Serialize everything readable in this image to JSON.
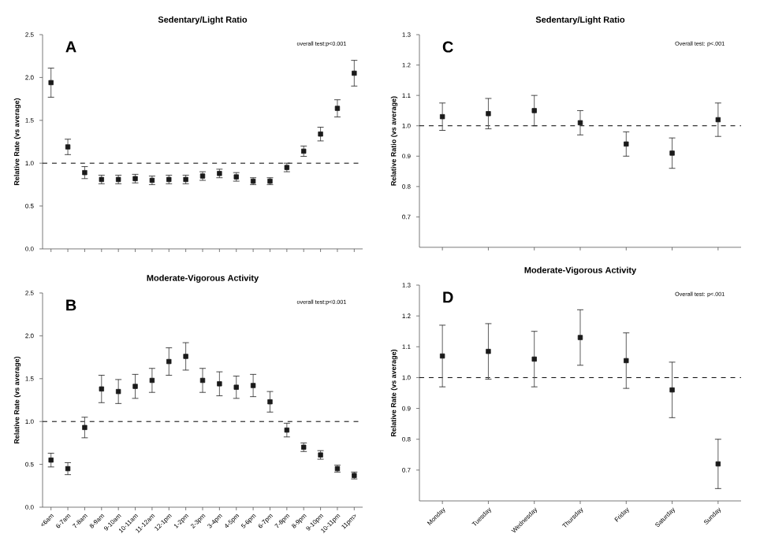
{
  "chart_data": [
    {
      "type": "scatter",
      "title": "Sedentary/Light Ratio",
      "ylabel": "Relative Rate (vs average)",
      "annotations": [
        "A",
        "overall test:p<0.001"
      ],
      "categories": [
        null,
        null,
        null,
        null,
        null,
        null,
        null,
        null,
        null,
        null,
        null,
        null,
        null,
        null,
        null,
        null,
        null,
        null,
        null
      ],
      "values": [
        1.94,
        1.19,
        0.89,
        0.81,
        0.81,
        0.82,
        0.8,
        0.81,
        0.81,
        0.85,
        0.88,
        0.84,
        0.79,
        0.79,
        0.95,
        1.14,
        1.34,
        1.64,
        2.05
      ],
      "errors": [
        0.17,
        0.09,
        0.07,
        0.05,
        0.05,
        0.05,
        0.05,
        0.05,
        0.05,
        0.05,
        0.05,
        0.05,
        0.04,
        0.04,
        0.05,
        0.06,
        0.08,
        0.1,
        0.15
      ],
      "color": "#1a1a1a",
      "marker": "square",
      "ylim": [
        0,
        2.5
      ],
      "yticks": [
        {
          "value": 0,
          "label": "0.0"
        },
        {
          "value": 0.5,
          "label": "0.5"
        },
        {
          "value": 1,
          "label": "1.0"
        },
        {
          "value": 1.5,
          "label": "1.5"
        },
        {
          "value": 2,
          "label": "2.0"
        },
        {
          "value": 2.5,
          "label": "2.5"
        }
      ],
      "ref_lines": [
        {
          "axis": "y",
          "value": 1,
          "line_style": "dashed"
        }
      ],
      "tick_labels": "y"
    },
    {
      "type": "scatter",
      "title": "Moderate-Vigorous Activity",
      "ylabel": "Relative Rate (vs average)",
      "annotations": [
        "B",
        "overall test:p<0.001"
      ],
      "categories": [
        "<6am",
        "6-7am",
        "7-8am",
        "8-9am",
        "9-10am",
        "10-11am",
        "11-12am",
        "12-1pm",
        "1-2pm",
        "2-3pm",
        "3-4pm",
        "4-5pm",
        "5-6pm",
        "6-7pm",
        "7-8pm",
        "8-9pm",
        "9-10pm",
        "10-11pm",
        "11pm>"
      ],
      "values": [
        0.55,
        0.45,
        0.93,
        1.38,
        1.35,
        1.41,
        1.48,
        1.7,
        1.76,
        1.48,
        1.44,
        1.4,
        1.42,
        1.23,
        0.9,
        0.7,
        0.61,
        0.45,
        0.37
      ],
      "errors": [
        0.08,
        0.07,
        0.12,
        0.16,
        0.14,
        0.14,
        0.14,
        0.16,
        0.16,
        0.14,
        0.14,
        0.13,
        0.13,
        0.12,
        0.08,
        0.05,
        0.05,
        0.04,
        0.04
      ],
      "color": "#1a1a1a",
      "marker": "square",
      "ylim": [
        0,
        2.5
      ],
      "yticks": [
        {
          "value": 0,
          "label": "0.0"
        },
        {
          "value": 0.5,
          "label": "0.5"
        },
        {
          "value": 1,
          "label": "1.0"
        },
        {
          "value": 1.5,
          "label": "1.5"
        },
        {
          "value": 2,
          "label": "2.0"
        },
        {
          "value": 2.5,
          "label": "2.5"
        }
      ],
      "ref_lines": [
        {
          "axis": "y",
          "value": 1,
          "line_style": "dashed"
        }
      ]
    },
    {
      "type": "scatter",
      "title": "Sedentary/Light Ratio",
      "ylabel": "Relative Ratio (vs average)",
      "annotations": [
        "C",
        "Overall test: p<.001"
      ],
      "categories": [
        null,
        null,
        null,
        null,
        null,
        null,
        null
      ],
      "values": [
        1.03,
        1.04,
        1.05,
        1.01,
        0.94,
        0.91,
        1.02
      ],
      "errors": [
        0.045,
        0.05,
        0.05,
        0.04,
        0.04,
        0.05,
        0.055
      ],
      "color": "#1a1a1a",
      "marker": "square",
      "ylim": [
        0.6,
        1.3
      ],
      "yticks": [
        {
          "value": 0.7,
          "label": "0.7"
        },
        {
          "value": 0.8,
          "label": "0.8"
        },
        {
          "value": 0.9,
          "label": "0.9"
        },
        {
          "value": 1,
          "label": "1.0"
        },
        {
          "value": 1.1,
          "label": "1.1"
        },
        {
          "value": 1.2,
          "label": "1.2"
        },
        {
          "value": 1.3,
          "label": "1.3"
        }
      ],
      "ref_lines": [
        {
          "axis": "y",
          "value": 1,
          "line_style": "dashed"
        }
      ],
      "tick_labels": "y"
    },
    {
      "type": "scatter",
      "title": "Moderate-Vigorous Activity",
      "ylabel": "Relative Rate (vs average)",
      "annotations": [
        "D",
        "Overall test: p<.001"
      ],
      "categories": [
        "Monday",
        "Tuesday",
        "Wednesday",
        "Thursday",
        "Friday",
        "Saturday",
        "Sunday"
      ],
      "values": [
        1.07,
        1.085,
        1.06,
        1.13,
        1.055,
        0.96,
        0.72
      ],
      "errors": [
        0.1,
        0.09,
        0.09,
        0.09,
        0.09,
        0.09,
        0.08
      ],
      "color": "#1a1a1a",
      "marker": "square",
      "ylim": [
        0.6,
        1.3
      ],
      "yticks": [
        {
          "value": 0.7,
          "label": "0.7"
        },
        {
          "value": 0.8,
          "label": "0.8"
        },
        {
          "value": 0.9,
          "label": "0.9"
        },
        {
          "value": 1,
          "label": "1.0"
        },
        {
          "value": 1.1,
          "label": "1.1"
        },
        {
          "value": 1.2,
          "label": "1.2"
        },
        {
          "value": 1.3,
          "label": "1.3"
        }
      ],
      "ref_lines": [
        {
          "axis": "y",
          "value": 1,
          "line_style": "dashed"
        }
      ]
    }
  ]
}
